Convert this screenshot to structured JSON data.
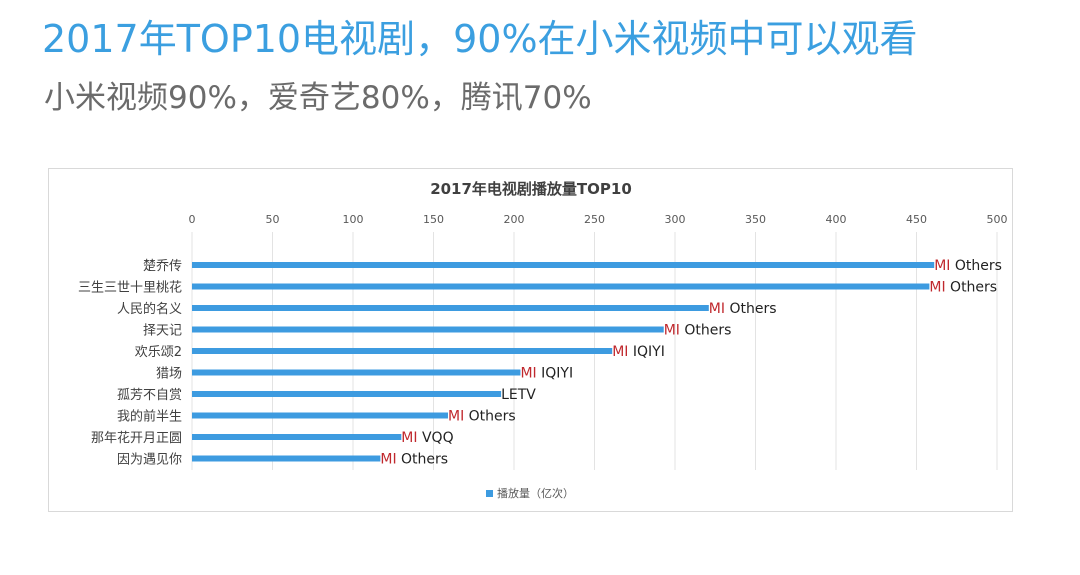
{
  "header": {
    "title": "2017年TOP10电视剧，90%在小米视频中可以观看",
    "subtitle": "小米视频90%，爱奇艺80%，腾讯70%"
  },
  "colors": {
    "bar": "#3d9be0",
    "mi": "#c0282d",
    "platform": "#222222",
    "title": "#3b9fe0"
  },
  "chart_data": {
    "type": "bar",
    "orientation": "horizontal",
    "title": "2017年电视剧播放量TOP10",
    "xlim": [
      0,
      500
    ],
    "x_ticks": [
      0,
      50,
      100,
      150,
      200,
      250,
      300,
      350,
      400,
      450,
      500
    ],
    "x_axis_position": "top",
    "grid": true,
    "legend": "bottom-center",
    "categories": [
      "楚乔传",
      "三生三世十里桃花",
      "人民的名义",
      "择天记",
      "欢乐颂2",
      "猎场",
      "孤芳不自赏",
      "我的前半生",
      "那年花开月正圆",
      "因为遇见你"
    ],
    "series": [
      {
        "name": "播放量（亿次）",
        "values": [
          461,
          458,
          321,
          293,
          261,
          204,
          192,
          159,
          130,
          117
        ]
      }
    ],
    "annotations": [
      {
        "mi": "MI",
        "platform": "Others"
      },
      {
        "mi": "MI",
        "platform": "Others"
      },
      {
        "mi": "MI",
        "platform": "Others"
      },
      {
        "mi": "MI",
        "platform": "Others"
      },
      {
        "mi": "MI",
        "platform": "IQIYI"
      },
      {
        "mi": "MI",
        "platform": "IQIYI"
      },
      {
        "mi": "",
        "platform": "LETV"
      },
      {
        "mi": "MI",
        "platform": "Others"
      },
      {
        "mi": "MI",
        "platform": "VQQ"
      },
      {
        "mi": "MI",
        "platform": "Others"
      }
    ]
  }
}
